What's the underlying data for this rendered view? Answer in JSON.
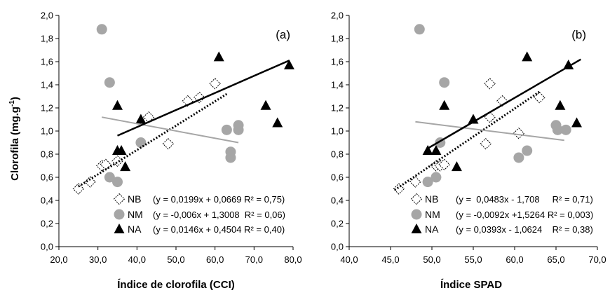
{
  "figure": {
    "ylabel": "Clorofila (mg.g",
    "ylabel_sup": "-1",
    "ylabel_close": ")"
  },
  "colors": {
    "NB_marker_fill": "#ffffff",
    "NB_marker_stroke": "#000000",
    "NM_marker": "#a6a6a6",
    "NM_trend": "#a6a6a6",
    "NA_marker": "#000000",
    "NA_trend": "#000000",
    "axis": "#000000"
  },
  "chart_data": [
    {
      "type": "scatter",
      "panel_label": "(a)",
      "xlabel": "Índice de clorofila (CCI)",
      "ylabel": "Clorofila (mg.g-1)",
      "xlim": [
        20,
        80
      ],
      "ylim": [
        0,
        2
      ],
      "xticks": [
        "20,0",
        "30,0",
        "40,0",
        "50,0",
        "60,0",
        "70,0",
        "80,0"
      ],
      "yticks": [
        "0,0",
        "0,2",
        "0,4",
        "0,6",
        "0,8",
        "1,0",
        "1,2",
        "1,4",
        "1,6",
        "1,8",
        "2,0"
      ],
      "grid": false,
      "legend_position": "bottom-right",
      "series": [
        {
          "name": "NB",
          "marker": "open-diamond",
          "equation": "(y = 0,0199x + 0,0669 R² = 0,75)",
          "trend": {
            "style": "dotted",
            "x": [
              25,
              63
            ],
            "y": [
              0.52,
              1.32
            ]
          },
          "points": [
            [
              25,
              0.5
            ],
            [
              28,
              0.56
            ],
            [
              31,
              0.7
            ],
            [
              32,
              0.71
            ],
            [
              35,
              0.74
            ],
            [
              43,
              1.12
            ],
            [
              48,
              0.89
            ],
            [
              53,
              1.26
            ],
            [
              56,
              1.29
            ],
            [
              60,
              1.41
            ]
          ]
        },
        {
          "name": "NM",
          "marker": "circle",
          "equation": "(y = -0,006x + 1,3008  R² = 0,06)",
          "trend": {
            "style": "solid",
            "x": [
              31,
              66
            ],
            "y": [
              1.12,
              0.9
            ]
          },
          "points": [
            [
              31,
              1.88
            ],
            [
              33,
              1.42
            ],
            [
              33,
              0.6
            ],
            [
              35,
              0.56
            ],
            [
              41,
              0.9
            ],
            [
              63,
              1.01
            ],
            [
              64,
              0.77
            ],
            [
              64,
              0.82
            ],
            [
              66,
              1.01
            ],
            [
              66,
              1.05
            ]
          ]
        },
        {
          "name": "NA",
          "marker": "filled-triangle",
          "equation": "(y = 0,0146x + 0,4504 R² = 0,40)",
          "trend": {
            "style": "solid",
            "x": [
              35,
              79
            ],
            "y": [
              0.96,
              1.61
            ]
          },
          "points": [
            [
              35,
              0.83
            ],
            [
              35,
              1.22
            ],
            [
              36,
              0.83
            ],
            [
              37,
              0.69
            ],
            [
              41,
              1.1
            ],
            [
              61,
              1.64
            ],
            [
              73,
              1.22
            ],
            [
              76,
              1.07
            ],
            [
              79,
              1.57
            ]
          ]
        }
      ]
    },
    {
      "type": "scatter",
      "panel_label": "(b)",
      "xlabel": "Índice SPAD",
      "ylabel": "",
      "xlim": [
        40,
        70
      ],
      "ylim": [
        0,
        2
      ],
      "xticks": [
        "40,0",
        "45,0",
        "50,0",
        "55,0",
        "60,0",
        "65,0",
        "70,0"
      ],
      "yticks": [
        "0,0",
        "0,2",
        "0,4",
        "0,6",
        "0,8",
        "1,0",
        "1,2",
        "1,4",
        "1,6",
        "1,8",
        "2,0"
      ],
      "grid": false,
      "legend_position": "bottom-right",
      "series": [
        {
          "name": "NB",
          "marker": "open-diamond",
          "equation": "(y =  0,0483x - 1,708     R² = 0,71)",
          "trend": {
            "style": "dotted",
            "x": [
              45.5,
              63
            ],
            "y": [
              0.49,
              1.34
            ]
          },
          "points": [
            [
              46,
              0.5
            ],
            [
              48,
              0.56
            ],
            [
              50.5,
              0.7
            ],
            [
              51,
              0.7
            ],
            [
              51.5,
              0.71
            ],
            [
              56.5,
              0.89
            ],
            [
              57,
              1.12
            ],
            [
              57,
              1.41
            ],
            [
              58.5,
              1.26
            ],
            [
              60.5,
              0.98
            ],
            [
              63,
              1.29
            ]
          ]
        },
        {
          "name": "NM",
          "marker": "circle",
          "equation": "(y = -0,0092x +1,5264 R² = 0,003)",
          "trend": {
            "style": "solid",
            "x": [
              48,
              66
            ],
            "y": [
              1.08,
              0.92
            ]
          },
          "points": [
            [
              48.5,
              1.88
            ],
            [
              49.5,
              0.56
            ],
            [
              50.5,
              0.6
            ],
            [
              51,
              0.9
            ],
            [
              51.5,
              1.42
            ],
            [
              60.5,
              0.77
            ],
            [
              61.5,
              0.83
            ],
            [
              65,
              1.05
            ],
            [
              65.2,
              1.01
            ],
            [
              66.2,
              1.01
            ]
          ]
        },
        {
          "name": "NA",
          "marker": "filled-triangle",
          "equation": "(y = 0,0393x - 1,0624    R² = 0,38)",
          "trend": {
            "style": "solid",
            "x": [
              49.5,
              68
            ],
            "y": [
              0.85,
              1.62
            ]
          },
          "points": [
            [
              49.5,
              0.83
            ],
            [
              50.5,
              0.83
            ],
            [
              51.5,
              1.22
            ],
            [
              53,
              0.69
            ],
            [
              55,
              1.1
            ],
            [
              61.5,
              1.64
            ],
            [
              65.5,
              1.22
            ],
            [
              66.5,
              1.57
            ],
            [
              67.5,
              1.07
            ]
          ]
        }
      ]
    }
  ]
}
